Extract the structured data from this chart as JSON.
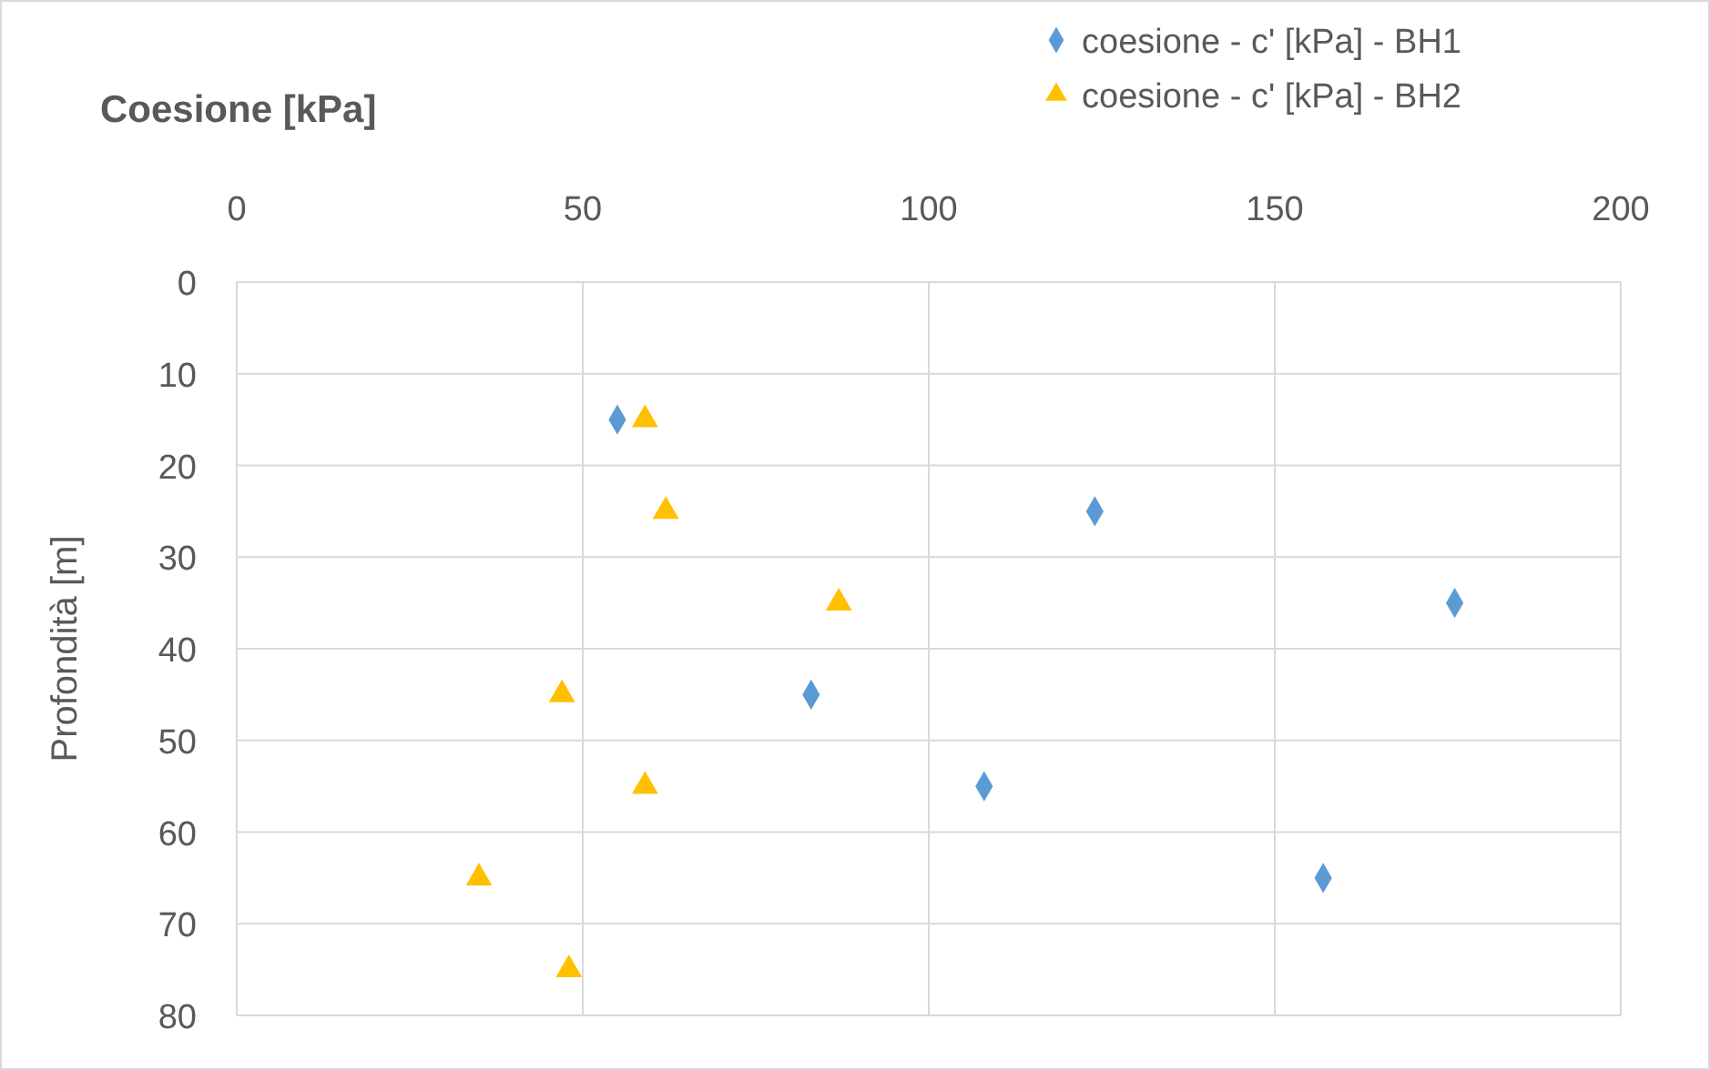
{
  "chart_data": {
    "type": "scatter",
    "title": "Coesione [kPa]",
    "ylabel": "Profondità [m]",
    "xlim": [
      0,
      200
    ],
    "xticks": [
      0,
      50,
      100,
      150,
      200
    ],
    "ylim": [
      80,
      0
    ],
    "yticks": [
      0,
      10,
      20,
      30,
      40,
      50,
      60,
      70,
      80
    ],
    "grid": true,
    "legend": "top right",
    "series": [
      {
        "name": "coesione - c' [kPa] - BH1",
        "color": "#5b9bd5",
        "marker": "diamond",
        "x": [
          55,
          124,
          176,
          83,
          108,
          157
        ],
        "values": [
          15,
          25,
          35,
          45,
          55,
          65
        ]
      },
      {
        "name": "coesione - c' [kPa] - BH2",
        "color": "#ffc000",
        "marker": "triangle",
        "x": [
          59,
          62,
          87,
          47,
          59,
          35,
          48
        ],
        "values": [
          15,
          25,
          35,
          45,
          55,
          65,
          75
        ]
      }
    ]
  }
}
